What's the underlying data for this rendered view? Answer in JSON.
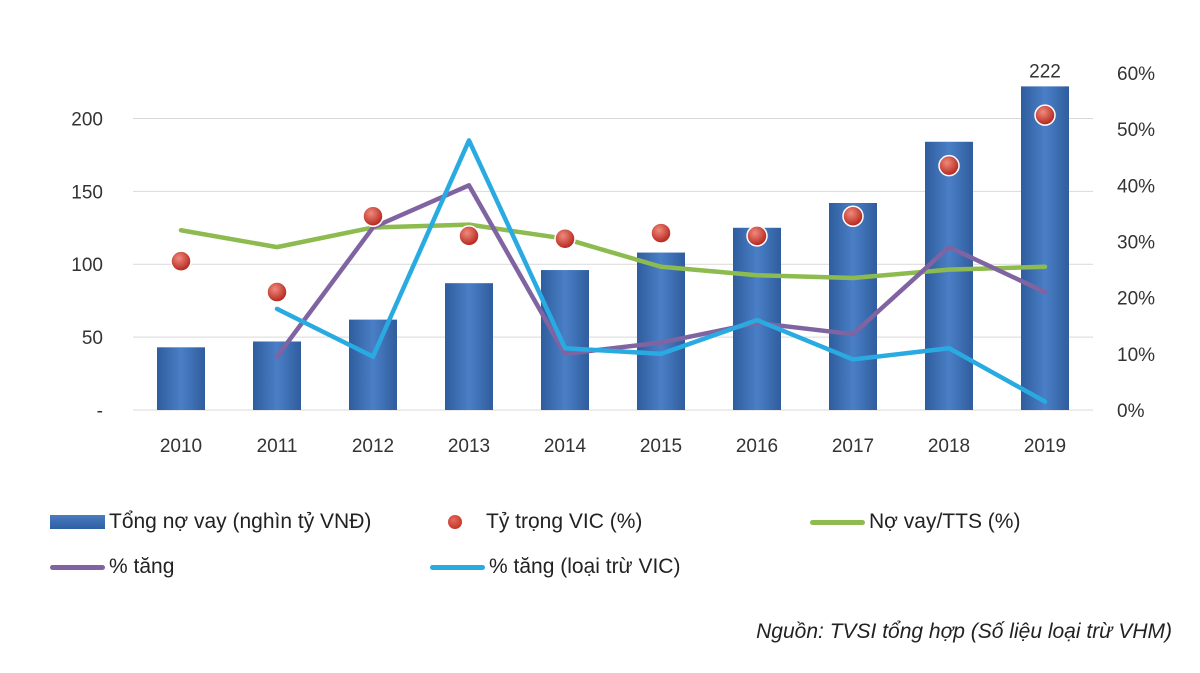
{
  "chart_data": {
    "type": "bar",
    "categories": [
      "2010",
      "2011",
      "2012",
      "2013",
      "2014",
      "2015",
      "2016",
      "2017",
      "2018",
      "2019"
    ],
    "series": [
      {
        "name": "Tổng nợ vay (nghìn tỷ VNĐ)",
        "type": "bar",
        "axis": "left",
        "values": [
          43,
          47,
          62,
          87,
          96,
          108,
          125,
          142,
          184,
          222
        ]
      },
      {
        "name": "Tỷ trọng VIC (%)",
        "type": "scatter",
        "axis": "right",
        "values": [
          26.5,
          21,
          34.5,
          31,
          30.5,
          31.5,
          31,
          34.5,
          43.5,
          52.5
        ]
      },
      {
        "name": "Nợ vay/TTS (%)",
        "type": "line",
        "axis": "right",
        "values": [
          32,
          29,
          32.5,
          33,
          30.5,
          25.5,
          24,
          23.5,
          25,
          25.5
        ]
      },
      {
        "name": "% tăng",
        "type": "line",
        "axis": "right",
        "values": [
          null,
          9.5,
          32.5,
          40,
          10,
          12,
          15.5,
          13.5,
          29,
          21
        ]
      },
      {
        "name": "% tăng (loại trừ VIC)",
        "type": "line",
        "axis": "right",
        "values": [
          null,
          18,
          9.5,
          48,
          11,
          10,
          16,
          9,
          11,
          1.5
        ]
      }
    ],
    "y_left": {
      "range": [
        0,
        225
      ],
      "ticks": [
        0,
        50,
        100,
        150,
        200
      ],
      "tick_labels": [
        "-",
        "50",
        "100",
        "150",
        "200"
      ]
    },
    "y_right": {
      "range": [
        0,
        60
      ],
      "ticks": [
        0,
        10,
        20,
        30,
        40,
        50,
        60
      ],
      "tick_labels": [
        "0%",
        "10%",
        "20%",
        "30%",
        "40%",
        "50%",
        "60%"
      ]
    },
    "data_labels": [
      {
        "category": "2019",
        "series": "Tổng nợ vay (nghìn tỷ VNĐ)",
        "text": "222"
      }
    ],
    "grid": "horizontal",
    "legend_position": "bottom"
  },
  "colors": {
    "bar": "#3a6cb4",
    "dot": "#c0392b",
    "debt_ratio": "#8dbb4f",
    "growth": "#8064a2",
    "growth_ex_vic": "#29abe2",
    "grid": "#d9d9d9"
  },
  "legend": {
    "bar": "Tổng nợ vay (nghìn tỷ VNĐ)",
    "dot": "Tỷ trọng VIC (%)",
    "debt_ratio": "Nợ vay/TTS (%)",
    "growth": "% tăng",
    "growth_ex_vic": "% tăng (loại trừ VIC)"
  },
  "source_note": "Nguồn: TVSI tổng hợp (Số liệu loại trừ VHM)"
}
